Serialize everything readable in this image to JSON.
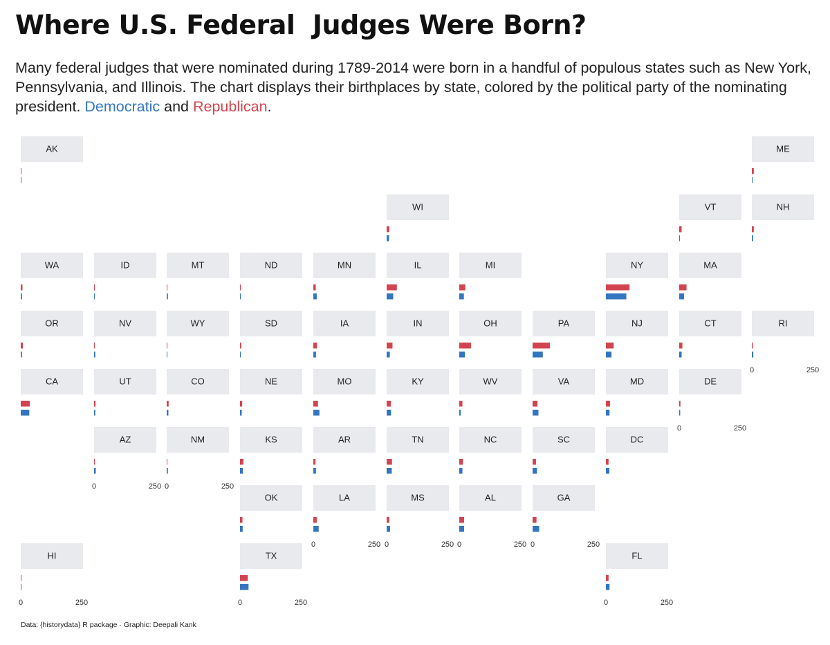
{
  "title": "Where U.S. Federal  Judges Were Born?",
  "subtitle": {
    "text": "Many federal judges that were nominated during 1789-2014 were born in a handful of populous states such as New York, Pennsylvania, and Illinois. The chart displays their birthplaces by state, colored by the political party of the nominating president.",
    "democratic_label": "Democratic",
    "conjunction": "and",
    "republican_label": "Republican",
    "end": "."
  },
  "caption": "Data: {historydata} R package · Graphic: Deepali Kank",
  "colors": {
    "democratic": "#3375bf",
    "republican": "#d2444f",
    "panel_header": "#e8eaed"
  },
  "chart_data": {
    "type": "bar",
    "layout": "state grid map of small-multiple horizontal bar charts",
    "series": [
      {
        "name": "Republican",
        "color": "#d2444f"
      },
      {
        "name": "Democratic",
        "color": "#3375bf"
      }
    ],
    "xlim": [
      0,
      300
    ],
    "axis_ticks": [
      "0",
      "250"
    ],
    "states": [
      {
        "state": "AK",
        "republican": 0,
        "democratic": 0
      },
      {
        "state": "ME",
        "republican": 8,
        "democratic": 3
      },
      {
        "state": "WI",
        "republican": 11,
        "democratic": 10
      },
      {
        "state": "VT",
        "republican": 10,
        "democratic": 3
      },
      {
        "state": "NH",
        "republican": 8,
        "democratic": 5
      },
      {
        "state": "WA",
        "republican": 7,
        "democratic": 5
      },
      {
        "state": "ID",
        "republican": 3,
        "democratic": 2
      },
      {
        "state": "MT",
        "republican": 2,
        "democratic": 5
      },
      {
        "state": "ND",
        "republican": 3,
        "democratic": 2
      },
      {
        "state": "MN",
        "republican": 10,
        "democratic": 14
      },
      {
        "state": "IL",
        "republican": 42,
        "democratic": 27
      },
      {
        "state": "MI",
        "republican": 25,
        "democratic": 19
      },
      {
        "state": "NY",
        "republican": 97,
        "democratic": 84
      },
      {
        "state": "MA",
        "republican": 30,
        "democratic": 20
      },
      {
        "state": "OR",
        "republican": 9,
        "democratic": 5
      },
      {
        "state": "NV",
        "republican": 1,
        "democratic": 5
      },
      {
        "state": "WY",
        "republican": 2,
        "democratic": 2
      },
      {
        "state": "SD",
        "republican": 5,
        "democratic": 3
      },
      {
        "state": "IA",
        "republican": 15,
        "democratic": 11
      },
      {
        "state": "IN",
        "republican": 24,
        "democratic": 13
      },
      {
        "state": "OH",
        "republican": 48,
        "democratic": 23
      },
      {
        "state": "PA",
        "republican": 71,
        "democratic": 42
      },
      {
        "state": "NJ",
        "republican": 32,
        "democratic": 23
      },
      {
        "state": "CT",
        "republican": 13,
        "democratic": 10
      },
      {
        "state": "RI",
        "republican": 4,
        "democratic": 6
      },
      {
        "state": "CA",
        "republican": 37,
        "democratic": 35
      },
      {
        "state": "UT",
        "republican": 6,
        "democratic": 5
      },
      {
        "state": "CO",
        "republican": 8,
        "democratic": 7
      },
      {
        "state": "NE",
        "republican": 9,
        "democratic": 7
      },
      {
        "state": "MO",
        "republican": 19,
        "democratic": 25
      },
      {
        "state": "KY",
        "republican": 17,
        "democratic": 18
      },
      {
        "state": "WV",
        "republican": 13,
        "democratic": 6
      },
      {
        "state": "VA",
        "republican": 20,
        "democratic": 24
      },
      {
        "state": "MD",
        "republican": 17,
        "democratic": 15
      },
      {
        "state": "DE",
        "republican": 5,
        "democratic": 4
      },
      {
        "state": "AZ",
        "republican": 2,
        "democratic": 7
      },
      {
        "state": "NM",
        "republican": 2,
        "democratic": 5
      },
      {
        "state": "KS",
        "republican": 14,
        "democratic": 12
      },
      {
        "state": "AR",
        "republican": 9,
        "democratic": 11
      },
      {
        "state": "TN",
        "republican": 22,
        "democratic": 21
      },
      {
        "state": "NC",
        "republican": 15,
        "democratic": 13
      },
      {
        "state": "SC",
        "republican": 14,
        "democratic": 18
      },
      {
        "state": "DC",
        "republican": 11,
        "democratic": 14
      },
      {
        "state": "OK",
        "republican": 10,
        "democratic": 11
      },
      {
        "state": "LA",
        "republican": 14,
        "democratic": 22
      },
      {
        "state": "MS",
        "republican": 11,
        "democratic": 14
      },
      {
        "state": "AL",
        "republican": 20,
        "democratic": 20
      },
      {
        "state": "GA",
        "republican": 16,
        "democratic": 27
      },
      {
        "state": "HI",
        "republican": 3,
        "democratic": 1
      },
      {
        "state": "TX",
        "republican": 32,
        "democratic": 35
      },
      {
        "state": "FL",
        "republican": 11,
        "democratic": 15
      }
    ]
  }
}
